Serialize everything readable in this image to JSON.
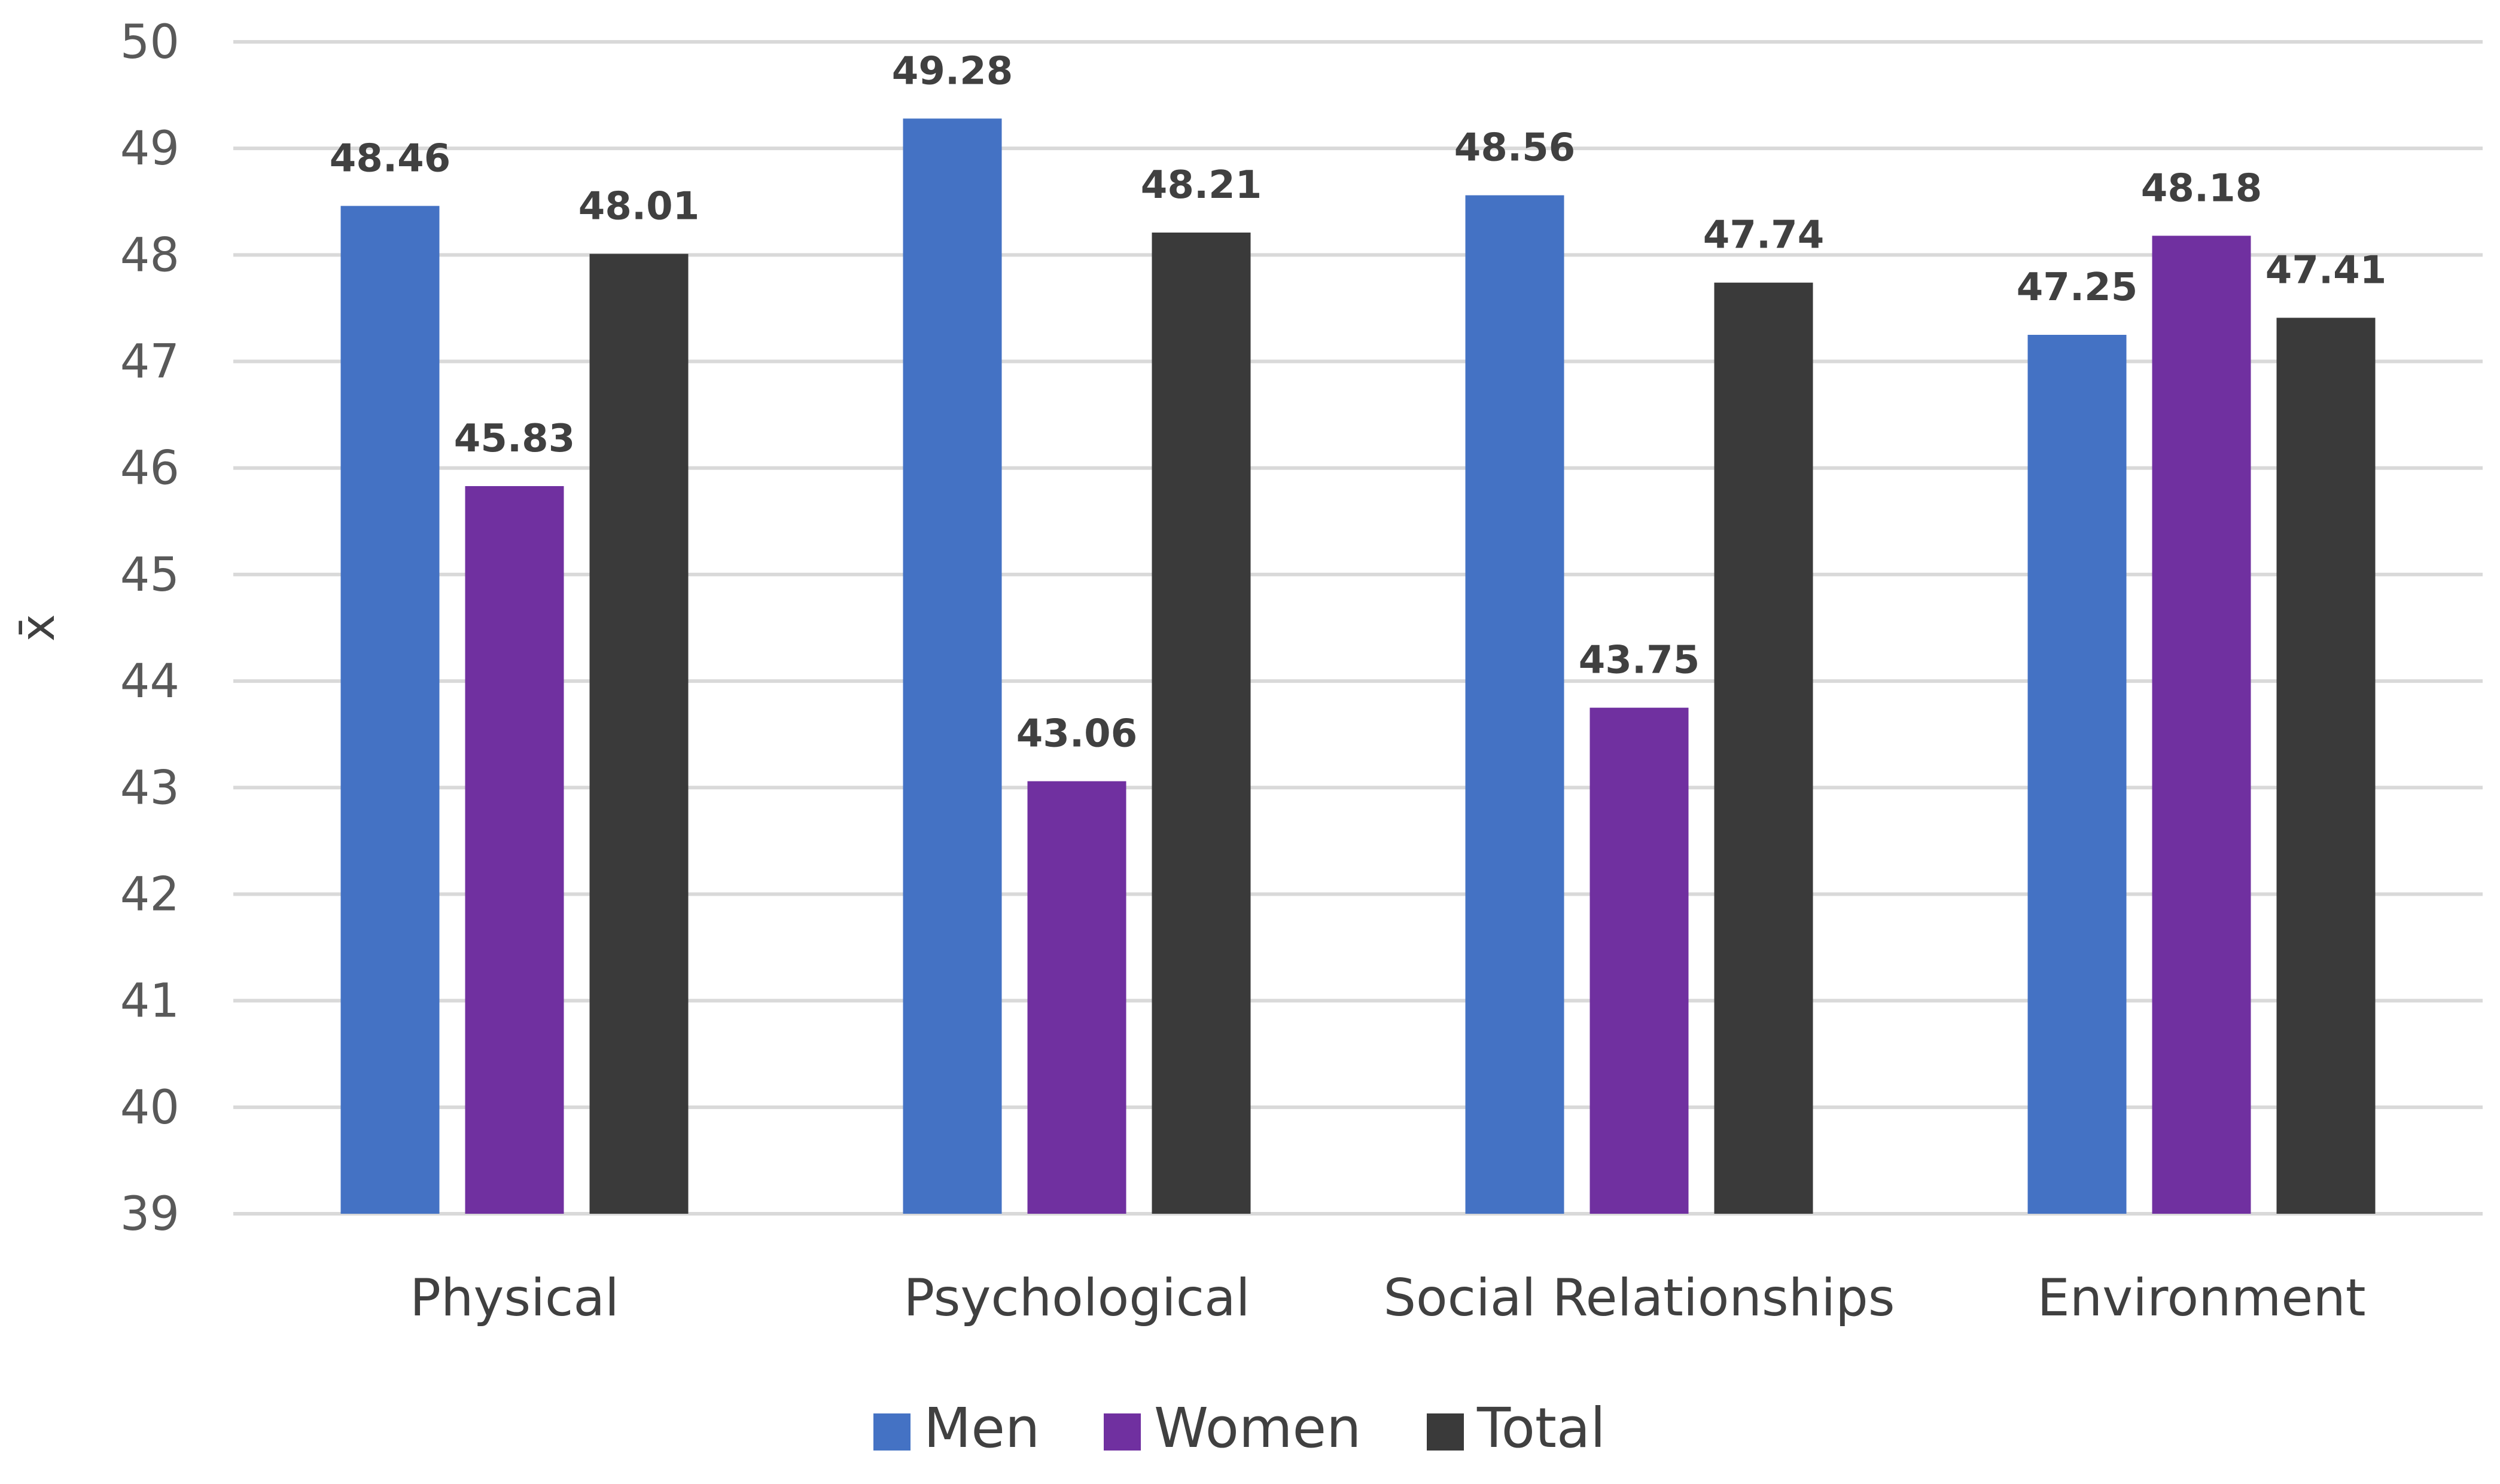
{
  "chart_data": {
    "type": "bar",
    "title": "",
    "xlabel": "",
    "ylabel": "x̄",
    "ylim": [
      39,
      50
    ],
    "yticks": [
      39,
      40,
      41,
      42,
      43,
      44,
      45,
      46,
      47,
      48,
      49,
      50
    ],
    "grid": true,
    "legend_position": "bottom",
    "categories": [
      "Physical",
      "Psychological",
      "Social Relationships",
      "Environment"
    ],
    "series": [
      {
        "name": "Men",
        "color": "#4472C4",
        "values": [
          48.46,
          49.28,
          48.56,
          47.25
        ]
      },
      {
        "name": "Women",
        "color": "#7030A0",
        "values": [
          45.83,
          43.06,
          43.75,
          48.18
        ]
      },
      {
        "name": "Total",
        "color": "#3A3A3A",
        "values": [
          48.01,
          48.21,
          47.74,
          47.41
        ]
      }
    ]
  }
}
